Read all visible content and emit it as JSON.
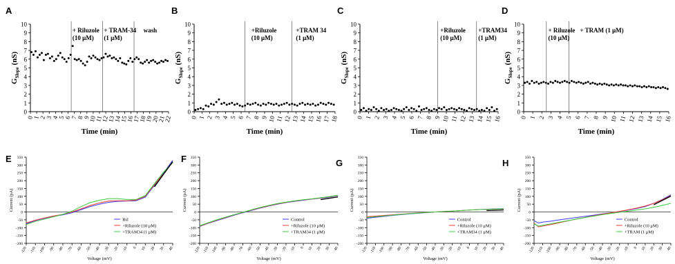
{
  "chart_data": [
    {
      "panel": "A",
      "type": "scatter",
      "xlabel": "Time (min)",
      "ylabel": "G",
      "ylabel_sub": "Slope",
      "ylabel_unit": " (nS)",
      "xlim": [
        0,
        22
      ],
      "ylim": [
        0,
        10
      ],
      "xticks": [
        "0",
        "1",
        "2",
        "3",
        "4",
        "5",
        "6",
        "7",
        "8",
        "9",
        "10",
        "11",
        "12",
        "13",
        "14",
        "15",
        "16",
        "17",
        "18",
        "19",
        "20",
        "21",
        "22"
      ],
      "yticks": [
        "0",
        "1",
        "2",
        "3",
        "4",
        "5",
        "6",
        "7",
        "8",
        "9",
        "10"
      ],
      "vlines": [
        6.5,
        11.5,
        16.5
      ],
      "annotations": [
        {
          "x": 6.7,
          "lines": [
            "+ Riluzole",
            "(10 μM)"
          ]
        },
        {
          "x": 11.7,
          "lines": [
            "+ TRAM-34",
            "(1 μM)"
          ]
        },
        {
          "x": 18.0,
          "lines": [
            "wash"
          ]
        }
      ],
      "y": [
        6.8,
        6.5,
        6.9,
        6.2,
        6.5,
        6.7,
        5.9,
        6.5,
        6.6,
        6.1,
        6.3,
        5.8,
        6.0,
        6.4,
        6.7,
        6.2,
        6.0,
        5.7,
        6.1,
        6.5,
        7.5,
        6.0,
        5.9,
        6.0,
        5.8,
        5.5,
        5.3,
        5.7,
        6.3,
        6.1,
        6.4,
        6.2,
        6.0,
        5.9,
        6.1,
        6.2,
        6.6,
        6.3,
        6.4,
        6.1,
        6.2,
        6.0,
        5.8,
        6.1,
        5.6,
        5.5,
        5.4,
        5.8,
        6.1,
        5.7,
        6.0,
        6.2,
        6.0,
        5.6,
        5.5,
        5.7,
        5.9,
        5.6,
        5.8,
        5.9,
        5.7,
        5.5,
        5.6,
        5.8,
        5.7,
        5.9,
        5.8
      ]
    },
    {
      "panel": "B",
      "type": "scatter",
      "xlabel": "Time (min)",
      "ylabel": "G",
      "ylabel_sub": "Slope",
      "ylabel_unit": " (nS)",
      "xlim": [
        0,
        18
      ],
      "ylim": [
        0,
        10
      ],
      "xticks": [
        "0",
        "1",
        "2",
        "3",
        "4",
        "5",
        "6",
        "7",
        "8",
        "9",
        "10",
        "11",
        "12",
        "13",
        "14",
        "15",
        "16",
        "17",
        "18"
      ],
      "yticks": [
        "0",
        "1",
        "2",
        "3",
        "4",
        "5",
        "6",
        "7",
        "8",
        "9",
        "10"
      ],
      "vlines": [
        6.5,
        12.5
      ],
      "annotations": [
        {
          "x": 7.3,
          "lines": [
            "+Riluzole",
            "(10 μM)"
          ]
        },
        {
          "x": 13.0,
          "lines": [
            "+TRAM 34",
            "(1 μM)"
          ]
        }
      ],
      "y": [
        0.2,
        0.3,
        0.4,
        0.3,
        0.7,
        0.6,
        0.9,
        0.8,
        1.1,
        1.4,
        0.9,
        1.0,
        0.8,
        0.9,
        1.0,
        0.8,
        0.9,
        0.7,
        0.6,
        0.7,
        0.9,
        0.8,
        0.9,
        1.0,
        0.8,
        0.7,
        0.9,
        0.8,
        1.0,
        0.9,
        0.8,
        0.9,
        0.7,
        0.8,
        0.9,
        1.0,
        0.8,
        0.9,
        0.8,
        0.7,
        0.9,
        1.0,
        0.8,
        0.9,
        0.8,
        0.9,
        0.7,
        0.8,
        1.0,
        0.9,
        0.8,
        1.0,
        0.9,
        0.8
      ]
    },
    {
      "panel": "C",
      "type": "scatter",
      "xlabel": "Time (min)",
      "ylabel": "G",
      "ylabel_sub": "Slope",
      "ylabel_unit": " (nS)",
      "xlim": [
        0,
        16
      ],
      "ylim": [
        0,
        10
      ],
      "xticks": [
        "0",
        "1",
        "2",
        "3",
        "4",
        "5",
        "6",
        "7",
        "8",
        "9",
        "10",
        "11",
        "12",
        "13",
        "14",
        "15",
        "16"
      ],
      "yticks": [
        "0",
        "1",
        "2",
        "3",
        "4",
        "5",
        "6",
        "7",
        "8",
        "9",
        "10"
      ],
      "vlines": [
        9.0,
        13.5
      ],
      "annotations": [
        {
          "x": 9.3,
          "lines": [
            "+Riluzole",
            "(10 μM)"
          ]
        },
        {
          "x": 13.7,
          "lines": [
            "+TRAM34",
            "(1 μM)"
          ]
        }
      ],
      "y": [
        0.2,
        0.4,
        0.1,
        0.3,
        0.2,
        0.5,
        0.3,
        0.1,
        0.4,
        0.2,
        0.3,
        0.1,
        0.2,
        0.4,
        0.3,
        0.2,
        0.1,
        0.3,
        0.5,
        0.2,
        0.4,
        0.3,
        0.1,
        0.6,
        0.2,
        0.3,
        0.4,
        0.2,
        0.1,
        0.3,
        0.2,
        0.4,
        0.3,
        0.5,
        0.2,
        0.3,
        0.4,
        0.3,
        0.2,
        0.4,
        0.3,
        0.2,
        0.1,
        0.4,
        0.3,
        0.2,
        0.3,
        0.1,
        0.2,
        0.1,
        0.4,
        0.2,
        0.5,
        0.1,
        0.3
      ]
    },
    {
      "panel": "D",
      "type": "scatter",
      "xlabel": "Time (min)",
      "ylabel": "G",
      "ylabel_sub": "Slope",
      "ylabel_unit": " (nS)",
      "xlim": [
        0,
        16
      ],
      "ylim": [
        0,
        10
      ],
      "xticks": [
        "0",
        "1",
        "2",
        "3",
        "4",
        "5",
        "6",
        "7",
        "8",
        "9",
        "10",
        "11",
        "12",
        "13",
        "14",
        "15",
        "16"
      ],
      "yticks": [
        "0",
        "1",
        "2",
        "3",
        "4",
        "5",
        "6",
        "7",
        "8",
        "9",
        "10"
      ],
      "vlines": [
        2.5,
        5.0
      ],
      "annotations": [
        {
          "x": 2.7,
          "lines": [
            "+ Riluzole",
            "(10 μM)"
          ]
        },
        {
          "x": 6.2,
          "lines": [
            "+ TRAM (1 μM)"
          ]
        }
      ],
      "y": [
        3.3,
        3.4,
        3.2,
        3.5,
        3.3,
        3.4,
        3.2,
        3.3,
        3.4,
        3.3,
        3.2,
        3.4,
        3.3,
        3.5,
        3.4,
        3.3,
        3.4,
        3.5,
        3.4,
        3.3,
        3.5,
        3.4,
        3.3,
        3.4,
        3.3,
        3.2,
        3.3,
        3.4,
        3.2,
        3.3,
        3.2,
        3.1,
        3.2,
        3.1,
        3.2,
        3.1,
        3.0,
        3.1,
        3.0,
        3.1,
        3.0,
        3.1,
        3.0,
        3.0,
        2.9,
        3.0,
        2.9,
        3.0,
        2.9,
        2.9,
        2.8,
        2.9,
        2.8,
        2.9,
        2.8,
        2.8,
        2.7,
        2.8,
        2.7,
        2.8,
        2.7,
        2.6
      ]
    },
    {
      "panel": "E",
      "type": "line",
      "xlabel": "Voltage (mV)",
      "ylabel": "Current (pA)",
      "xlim": [
        -120,
        40
      ],
      "ylim": [
        -200,
        350
      ],
      "xticks": [
        "-120",
        "-110",
        "-100",
        "-90",
        "-80",
        "-70",
        "-60",
        "-50",
        "-40",
        "-30",
        "-20",
        "-10",
        "0",
        "10",
        "20",
        "30",
        "40"
      ],
      "yticks": [
        "-200",
        "-150",
        "-100",
        "-50",
        "0",
        "50",
        "100",
        "150",
        "200",
        "250",
        "300",
        "350"
      ],
      "x": [
        -120,
        -110,
        -100,
        -90,
        -80,
        -70,
        -60,
        -50,
        -40,
        -30,
        -20,
        -10,
        0,
        10,
        20,
        30,
        40
      ],
      "series": [
        {
          "name": "Bsl",
          "color": "#3a3af0",
          "values": [
            -75,
            -55,
            -40,
            -28,
            -18,
            -5,
            15,
            35,
            50,
            62,
            68,
            70,
            72,
            95,
            170,
            250,
            330
          ]
        },
        {
          "name": "+Riluzole (10 μM)",
          "color": "#f03a3a",
          "values": [
            -70,
            -52,
            -38,
            -25,
            -15,
            0,
            20,
            42,
            58,
            70,
            72,
            72,
            76,
            100,
            175,
            245,
            320
          ]
        },
        {
          "name": "+TRAM34 (1 μM)",
          "color": "#3cc83c",
          "values": [
            -80,
            -60,
            -45,
            -30,
            -15,
            5,
            35,
            60,
            75,
            85,
            85,
            80,
            80,
            105,
            180,
            255,
            315
          ]
        }
      ]
    },
    {
      "panel": "F",
      "type": "line",
      "xlabel": "Voltage (mV)",
      "ylabel": "Current (pA)",
      "xlim": [
        -120,
        40
      ],
      "ylim": [
        -200,
        350
      ],
      "xticks": [
        "-120",
        "-110",
        "-100",
        "-90",
        "-80",
        "-70",
        "-60",
        "-50",
        "-40",
        "-30",
        "-20",
        "-10",
        "0",
        "10",
        "20",
        "30",
        "40"
      ],
      "yticks": [
        "-200",
        "-150",
        "-100",
        "-50",
        "0",
        "50",
        "100",
        "150",
        "200",
        "250",
        "300",
        "350"
      ],
      "x": [
        -120,
        -110,
        -100,
        -90,
        -80,
        -70,
        -60,
        -50,
        -40,
        -30,
        -20,
        -10,
        0,
        10,
        20,
        30,
        40
      ],
      "series": [
        {
          "name": "Control",
          "color": "#3a3af0",
          "values": [
            -92,
            -72,
            -55,
            -38,
            -20,
            -5,
            10,
            25,
            38,
            50,
            60,
            68,
            75,
            82,
            88,
            95,
            105
          ]
        },
        {
          "name": "+Riluzole (10 μM)",
          "color": "#f03a3a",
          "values": [
            -90,
            -70,
            -52,
            -35,
            -18,
            -3,
            12,
            27,
            40,
            52,
            62,
            70,
            77,
            83,
            90,
            97,
            106
          ]
        },
        {
          "name": "+TRAM34 (1 μM)",
          "color": "#3cc83c",
          "values": [
            -88,
            -68,
            -50,
            -33,
            -17,
            -2,
            14,
            29,
            42,
            54,
            63,
            71,
            78,
            84,
            91,
            98,
            107
          ]
        }
      ]
    },
    {
      "panel": "G",
      "type": "line",
      "xlabel": "Voltage (mV)",
      "ylabel": "Current (pA)",
      "xlim": [
        -120,
        40
      ],
      "ylim": [
        -200,
        350
      ],
      "xticks": [
        "-120",
        "-110",
        "-100",
        "-90",
        "-80",
        "-70",
        "-60",
        "-50",
        "-40",
        "-30",
        "-20",
        "-10",
        "0",
        "10",
        "20",
        "30",
        "40"
      ],
      "yticks": [
        "-200",
        "-150",
        "-100",
        "-50",
        "0",
        "50",
        "100",
        "150",
        "200",
        "250",
        "300",
        "350"
      ],
      "x": [
        -120,
        -110,
        -100,
        -90,
        -80,
        -70,
        -60,
        -50,
        -40,
        -30,
        -20,
        -10,
        0,
        10,
        20,
        30,
        40
      ],
      "series": [
        {
          "name": "Control",
          "color": "#3a3af0",
          "values": [
            -40,
            -34,
            -28,
            -22,
            -17,
            -12,
            -8,
            -4,
            0,
            3,
            6,
            9,
            12,
            15,
            18,
            20,
            22
          ]
        },
        {
          "name": "+Riluzole (10 μM)",
          "color": "#f03a3a",
          "values": [
            -30,
            -26,
            -22,
            -18,
            -14,
            -10,
            -6,
            -3,
            0,
            3,
            6,
            9,
            12,
            15,
            17,
            19,
            21
          ]
        },
        {
          "name": "+TRAM34 (1 μM)",
          "color": "#3cc83c",
          "values": [
            -35,
            -30,
            -25,
            -20,
            -15,
            -11,
            -7,
            -3,
            0,
            3,
            6,
            9,
            12,
            15,
            17,
            19,
            21
          ]
        }
      ]
    },
    {
      "panel": "H",
      "type": "line",
      "xlabel": "Voltage (mV)",
      "ylabel": "Current (pA)",
      "xlim": [
        -120,
        40
      ],
      "ylim": [
        -200,
        350
      ],
      "xticks": [
        "-120",
        "-110",
        "-100",
        "-90",
        "-80",
        "-70",
        "-60",
        "-50",
        "-40",
        "-30",
        "-20",
        "-10",
        "0",
        "10",
        "20",
        "30",
        "40"
      ],
      "yticks": [
        "-200",
        "-150",
        "-100",
        "-50",
        "0",
        "50",
        "100",
        "150",
        "200",
        "250",
        "300",
        "350"
      ],
      "x": [
        -120,
        -115,
        -110,
        -100,
        -90,
        -80,
        -70,
        -60,
        -50,
        -40,
        -30,
        -20,
        -10,
        0,
        10,
        20,
        30,
        40
      ],
      "series": [
        {
          "name": "Control",
          "color": "#3a3af0",
          "values": [
            -55,
            -70,
            -65,
            -58,
            -50,
            -42,
            -35,
            -27,
            -20,
            -12,
            -5,
            3,
            12,
            22,
            35,
            55,
            80,
            110
          ]
        },
        {
          "name": "+Riluzole (10 μM)",
          "color": "#f03a3a",
          "values": [
            -70,
            -95,
            -90,
            -80,
            -68,
            -56,
            -45,
            -34,
            -24,
            -14,
            -5,
            4,
            14,
            25,
            38,
            55,
            78,
            105
          ]
        },
        {
          "name": "+TRAM (1 μM)",
          "color": "#3cc83c",
          "values": [
            -75,
            -90,
            -85,
            -75,
            -65,
            -55,
            -45,
            -35,
            -26,
            -17,
            -9,
            -2,
            5,
            12,
            20,
            30,
            42,
            55
          ]
        }
      ]
    }
  ]
}
